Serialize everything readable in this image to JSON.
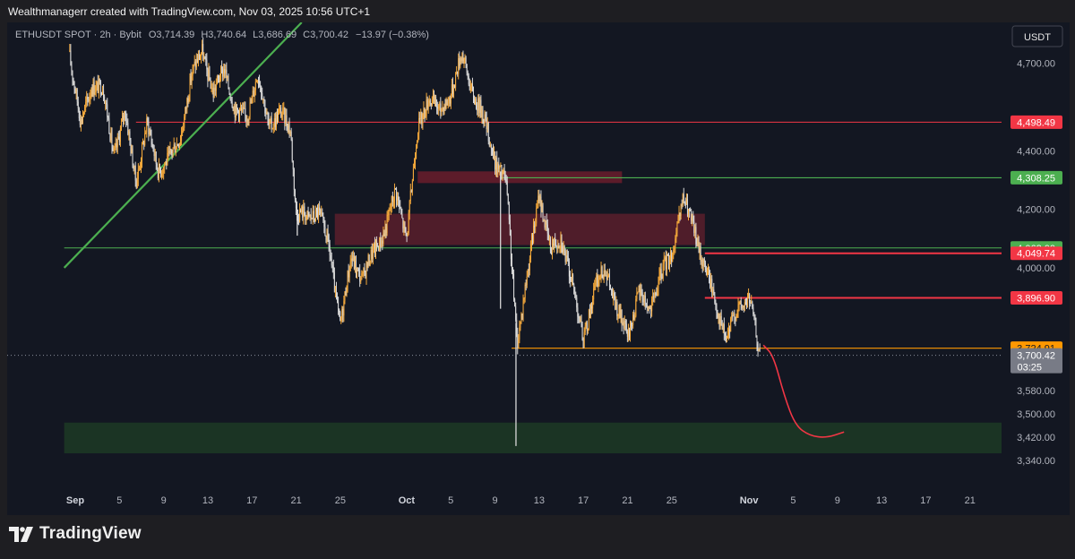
{
  "header": {
    "credit": "Wealthmanagerr created with TradingView.com, Nov 03, 2025 10:56 UTC+1"
  },
  "branding": {
    "logo_text": "TradingView"
  },
  "chart_data": {
    "type": "candlestick",
    "symbol_line": {
      "symbol": "ETHUSDT SPOT · 2h · Bybit",
      "o_label": "O",
      "o": "3,714.39",
      "h_label": "H",
      "h": "3,740.64",
      "l_label": "L",
      "l": "3,686.69",
      "c_label": "C",
      "c": "3,700.42",
      "change": "−13.97 (−0.38%)"
    },
    "currency_button": "USDT",
    "y_axis": {
      "range": [
        3270,
        4840
      ],
      "ticks": [
        {
          "value": 4700,
          "label": "4,700.00"
        },
        {
          "value": 4400,
          "label": "4,400.00"
        },
        {
          "value": 4200,
          "label": "4,200.00"
        },
        {
          "value": 4000,
          "label": "4,000.00"
        },
        {
          "value": 3580,
          "label": "3,580.00"
        },
        {
          "value": 3500,
          "label": "3,500.00"
        },
        {
          "value": 3420,
          "label": "3,420.00"
        },
        {
          "value": 3340,
          "label": "3,340.00"
        }
      ]
    },
    "x_axis": {
      "ticks": [
        {
          "day": 0,
          "label": "Sep",
          "bold": true
        },
        {
          "day": 4,
          "label": "5"
        },
        {
          "day": 8,
          "label": "9"
        },
        {
          "day": 12,
          "label": "13"
        },
        {
          "day": 16,
          "label": "17"
        },
        {
          "day": 20,
          "label": "21"
        },
        {
          "day": 24,
          "label": "25"
        },
        {
          "day": 30,
          "label": "Oct",
          "bold": true
        },
        {
          "day": 34,
          "label": "5"
        },
        {
          "day": 38,
          "label": "9"
        },
        {
          "day": 42,
          "label": "13"
        },
        {
          "day": 46,
          "label": "17"
        },
        {
          "day": 50,
          "label": "21"
        },
        {
          "day": 54,
          "label": "25"
        },
        {
          "day": 61,
          "label": "Nov",
          "bold": true
        },
        {
          "day": 65,
          "label": "5"
        },
        {
          "day": 69,
          "label": "9"
        },
        {
          "day": 73,
          "label": "13"
        },
        {
          "day": 77,
          "label": "17"
        },
        {
          "day": 81,
          "label": "21"
        }
      ]
    },
    "price_path": [
      [
        -0.5,
        4740
      ],
      [
        0.5,
        4480
      ],
      [
        1.5,
        4640
      ],
      [
        2.5,
        4600
      ],
      [
        3.5,
        4400
      ],
      [
        4.5,
        4520
      ],
      [
        5.5,
        4310
      ],
      [
        6.5,
        4480
      ],
      [
        7.5,
        4350
      ],
      [
        8.5,
        4360
      ],
      [
        9.5,
        4460
      ],
      [
        10.5,
        4640
      ],
      [
        11.5,
        4760
      ],
      [
        12.5,
        4580
      ],
      [
        13.5,
        4700
      ],
      [
        14.5,
        4520
      ],
      [
        15.5,
        4530
      ],
      [
        16.5,
        4650
      ],
      [
        17.5,
        4500
      ],
      [
        18.5,
        4520
      ],
      [
        19.5,
        4480
      ],
      [
        20,
        4200
      ],
      [
        21,
        4160
      ],
      [
        22,
        4210
      ],
      [
        23,
        4050
      ],
      [
        24,
        3820
      ],
      [
        25,
        4020
      ],
      [
        26,
        3980
      ],
      [
        27,
        4040
      ],
      [
        28,
        4140
      ],
      [
        29,
        4250
      ],
      [
        30,
        4120
      ],
      [
        31,
        4460
      ],
      [
        32,
        4600
      ],
      [
        33,
        4520
      ],
      [
        34,
        4610
      ],
      [
        35,
        4720
      ],
      [
        36,
        4610
      ],
      [
        37,
        4500
      ],
      [
        38,
        4380
      ],
      [
        39,
        4280
      ],
      [
        40,
        3760
      ],
      [
        41,
        3980
      ],
      [
        42,
        4270
      ],
      [
        43,
        4050
      ],
      [
        44,
        4120
      ],
      [
        45,
        3930
      ],
      [
        46,
        3770
      ],
      [
        47,
        3910
      ],
      [
        48,
        4020
      ],
      [
        49,
        3840
      ],
      [
        50,
        3780
      ],
      [
        51,
        3900
      ],
      [
        52,
        3870
      ],
      [
        53,
        3960
      ],
      [
        54,
        4060
      ],
      [
        55,
        4220
      ],
      [
        56,
        4150
      ],
      [
        57,
        3990
      ],
      [
        58,
        3890
      ],
      [
        59,
        3740
      ],
      [
        60,
        3880
      ],
      [
        61,
        3890
      ],
      [
        62,
        3700
      ]
    ],
    "spikes": [
      {
        "day": 39.9,
        "low": 3390
      },
      {
        "day": 38.5,
        "low": 3860
      },
      {
        "day": 20.1,
        "low": 4110
      }
    ],
    "current_price": 3700.42,
    "price_labels": [
      {
        "value": 4498.49,
        "label": "4,498.49",
        "color": "#f23645"
      },
      {
        "value": 4308.25,
        "label": "4,308.25",
        "color": "#4caf50"
      },
      {
        "value": 4068.0,
        "label": "4,068.00",
        "color": "#4caf50"
      },
      {
        "value": 4049.74,
        "label": "4,049.74",
        "color": "#f23645"
      },
      {
        "value": 3896.9,
        "label": "3,896.90",
        "color": "#f23645"
      },
      {
        "value": 3724.91,
        "label": "3,724.91",
        "color": "#ff9800"
      }
    ],
    "current_label": {
      "price": "3,700.42",
      "countdown": "03:25"
    },
    "drawings": {
      "hlines": [
        {
          "value": 4498.49,
          "from_day": 5.5,
          "color": "#f23645"
        },
        {
          "value": 4308.25,
          "from_day": 38.5,
          "color": "#4caf50"
        },
        {
          "value": 4068.0,
          "from_day": -1,
          "color": "#4caf50"
        },
        {
          "value": 4049.74,
          "from_day": 57,
          "color": "#f23645",
          "bold": true
        },
        {
          "value": 3896.9,
          "from_day": 57,
          "color": "#f23645",
          "bold": true
        },
        {
          "value": 3724.91,
          "from_day": 39.5,
          "color": "#ff9800"
        }
      ],
      "zones": [
        {
          "from_day": 31,
          "to_day": 49.5,
          "top": 4330,
          "bottom": 4290,
          "color": "#6b1d2c"
        },
        {
          "from_day": 23.5,
          "to_day": 57,
          "top": 4185,
          "bottom": 4078,
          "color": "#5a1f2c"
        },
        {
          "from_day": -1,
          "to_day": 90,
          "top": 3470,
          "bottom": 3365,
          "color": "#1d3a24"
        }
      ],
      "trendline": {
        "from": [
          -1,
          4000
        ],
        "to": [
          20.5,
          4840
        ],
        "color": "#4caf50"
      },
      "projection": [
        [
          62.3,
          3735
        ],
        [
          63.2,
          3700
        ],
        [
          64.2,
          3560
        ],
        [
          65.2,
          3460
        ],
        [
          66.5,
          3425
        ],
        [
          68,
          3418
        ],
        [
          69.6,
          3438
        ]
      ]
    }
  }
}
